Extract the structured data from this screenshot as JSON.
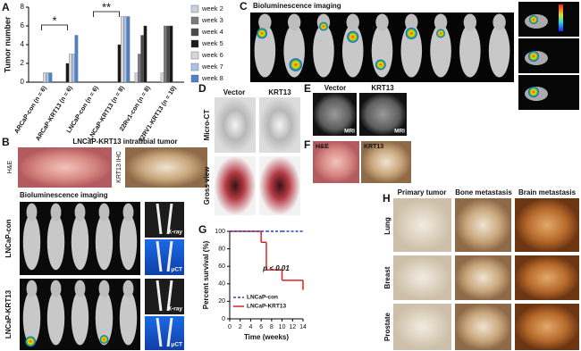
{
  "chart_data": [
    {
      "type": "bar",
      "ylabel": "Tumor number",
      "categories": [
        "ARCaP-con (n = 6)",
        "ARCaP-KRT13 (n = 6)",
        "LNCaP-con (n = 6)",
        "LNCaP-KRT13 (n = 8)",
        "22Rv1-con (n = 8)",
        "22RV1-KRT13 (n = 10)"
      ],
      "series": [
        {
          "name": "week 2",
          "color": "#c8d0dc",
          "values": [
            0,
            0,
            0,
            0,
            1,
            1
          ]
        },
        {
          "name": "week 3",
          "color": "#7a7a7a",
          "values": [
            0,
            0,
            0,
            0,
            3,
            6
          ]
        },
        {
          "name": "week 4",
          "color": "#4a4a4a",
          "values": [
            0,
            0,
            0,
            0,
            5,
            6
          ]
        },
        {
          "name": "week 5",
          "color": "#1a1a1a",
          "values": [
            0,
            2,
            0,
            4,
            6,
            6
          ]
        },
        {
          "name": "week 6",
          "color": "#d9d9d9",
          "values": [
            1,
            3,
            0,
            7,
            null,
            null
          ]
        },
        {
          "name": "week 7",
          "color": "#a9c4e8",
          "values": [
            1,
            3,
            0,
            7,
            null,
            null
          ]
        },
        {
          "name": "week 8",
          "color": "#4f81c7",
          "values": [
            1,
            5,
            0,
            7,
            null,
            null
          ]
        }
      ],
      "annotations": [
        "*",
        "**"
      ],
      "ylim": [
        0,
        8
      ],
      "yticks": [
        0,
        2,
        4,
        6,
        8
      ],
      "legend": "right"
    },
    {
      "type": "line",
      "xlabel": "Time (weeks)",
      "ylabel": "Percent survival (%)",
      "annotation": "p < 0.01",
      "x": [
        0,
        6,
        7,
        10,
        14
      ],
      "series": [
        {
          "name": "LNCaP-con",
          "color": "#2a3fbf",
          "dashed": true,
          "values": [
            100,
            100,
            100,
            100,
            100
          ]
        },
        {
          "name": "LNCaP-KRT13",
          "color": "#e02020",
          "dashed": false,
          "values": [
            100,
            87.5,
            56,
            44,
            33
          ]
        }
      ],
      "xlim": [
        0,
        14
      ],
      "xticks": [
        0,
        2,
        4,
        6,
        8,
        10,
        12,
        14
      ],
      "ylim": [
        0,
        100
      ],
      "yticks": [
        0,
        20,
        40,
        60,
        80,
        100
      ],
      "legend": "lower left"
    }
  ],
  "panels": {
    "letters": [
      "A",
      "B",
      "C",
      "D",
      "E",
      "F",
      "G",
      "H"
    ],
    "c_title": "Bioluminescence imaging",
    "b": {
      "title": "LNCaP-KRT13 intratibial tumor",
      "stains": [
        "H&E",
        "KRT13 IHC"
      ],
      "imaging": "Bioluminescence imaging",
      "groups": [
        "LNCaP-con",
        "LNCaP-KRT13"
      ],
      "modalities": [
        "X-ray",
        "μCT",
        "X-ray",
        "μCT"
      ]
    },
    "d": {
      "columns": [
        "Vector",
        "KRT13"
      ],
      "rows": [
        "Micro-CT",
        "Gross view"
      ]
    },
    "e": {
      "columns": [
        "Vector",
        "KRT13"
      ],
      "modality": [
        "MRI",
        "MRI"
      ]
    },
    "f": {
      "labels": [
        "H&E",
        "KRT13"
      ]
    },
    "h": {
      "columns": [
        "Primary tumor",
        "Bone metastasis",
        "Brain metastasis"
      ],
      "rows": [
        "Lung",
        "Breast",
        "Prostate"
      ]
    }
  }
}
